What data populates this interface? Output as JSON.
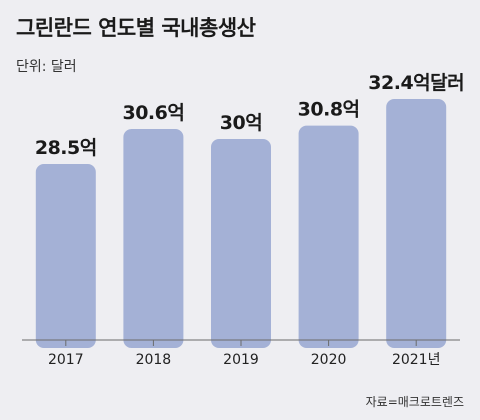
{
  "title": "그린란드 연도별 국내총생산",
  "unit_label": "단위: 달러",
  "source": "자료=매크로트렌즈",
  "chart_data": {
    "type": "bar",
    "categories": [
      "2017",
      "2018",
      "2019",
      "2020",
      "2021년"
    ],
    "values": [
      28.5,
      30.6,
      30.0,
      30.8,
      32.4
    ],
    "data_labels": [
      "28.5억",
      "30.6억",
      "30억",
      "30.8억",
      "32.4억달러"
    ],
    "title": "그린란드 연도별 국내총생산",
    "ylabel": "단위: 달러",
    "bar_color": "#a4b1d6",
    "grid": false
  }
}
